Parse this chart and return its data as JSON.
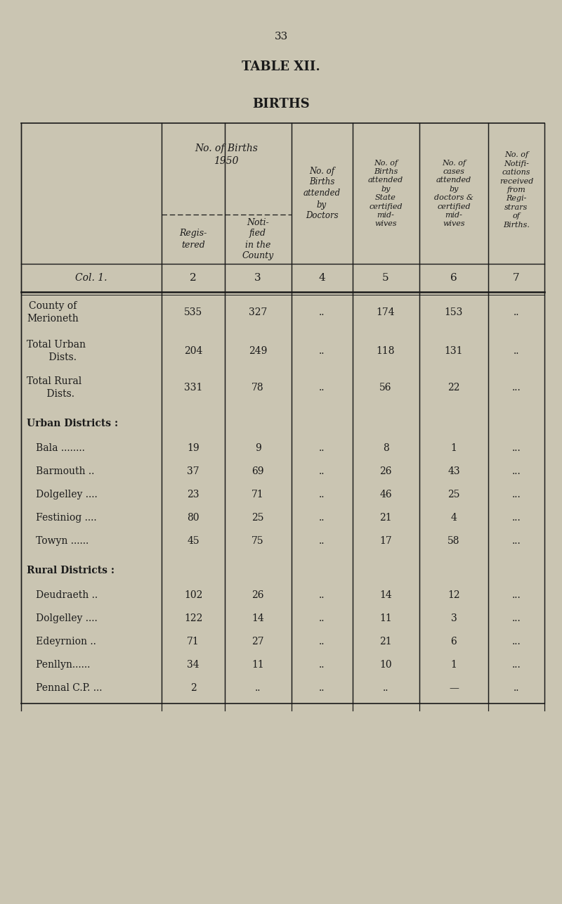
{
  "page_number": "33",
  "table_title": "TABLE XII.",
  "table_subtitle": "BIRTHS",
  "bg_color": "#cac5b2",
  "text_color": "#1a1a1a",
  "col_num_row": [
    "Col. 1.",
    "2",
    "3",
    "4",
    "5",
    "6",
    "7"
  ],
  "header_col1_label": "",
  "header_col23_title": "No. of Births\n1950",
  "header_col2_sub": "Regis-\ntered",
  "header_col3_sub": "Noti-\nfied\nin the\nCounty",
  "header_col4": "No. of\nBirths\nattended\nby\nDoctors",
  "header_col5": "No. of\nBirths\nattended\nby\nState\ncertified\nmid-\nwives",
  "header_col6": "No. of\ncases\nattended\nby\ndoctors &\ncertified\nmid-\nwives",
  "header_col7": "No. of\nNotifi-\ncations\nreceived\nfrom\nRegi-\nstrars\nof\nBirths.",
  "rows": [
    {
      "label": "County of\nMerioneth",
      "type": "summary",
      "col2": "535",
      "col3": "327",
      "col4": "..",
      "col5": "174",
      "col6": "153",
      "col7": ".."
    },
    {
      "label": "Total Urban\n    Dists.",
      "type": "summary",
      "col2": "204",
      "col3": "249",
      "col4": "..",
      "col5": "118",
      "col6": "131",
      "col7": ".."
    },
    {
      "label": "Total Rural\n    Dists.",
      "type": "summary",
      "col2": "331",
      "col3": "78",
      "col4": "..",
      "col5": "56",
      "col6": "22",
      "col7": "..."
    },
    {
      "label": "Urban Districts :",
      "type": "section_header",
      "col2": "",
      "col3": "",
      "col4": "",
      "col5": "",
      "col6": "",
      "col7": ""
    },
    {
      "label": "   Bala ........",
      "type": "data",
      "col2": "19",
      "col3": "9",
      "col4": "..",
      "col5": "8",
      "col6": "1",
      "col7": "..."
    },
    {
      "label": "   Barmouth ..",
      "type": "data",
      "col2": "37",
      "col3": "69",
      "col4": "..",
      "col5": "26",
      "col6": "43",
      "col7": "..."
    },
    {
      "label": "   Dolgelley ....",
      "type": "data",
      "col2": "23",
      "col3": "71",
      "col4": "..",
      "col5": "46",
      "col6": "25",
      "col7": "..."
    },
    {
      "label": "   Festiniog ....",
      "type": "data",
      "col2": "80",
      "col3": "25",
      "col4": "..",
      "col5": "21",
      "col6": "4",
      "col7": "..."
    },
    {
      "label": "   Towyn ......",
      "type": "data",
      "col2": "45",
      "col3": "75",
      "col4": "..",
      "col5": "17",
      "col6": "58",
      "col7": "..."
    },
    {
      "label": "Rural Districts :",
      "type": "section_header",
      "col2": "",
      "col3": "",
      "col4": "",
      "col5": "",
      "col6": "",
      "col7": ""
    },
    {
      "label": "   Deudraeth ..",
      "type": "data",
      "col2": "102",
      "col3": "26",
      "col4": "..",
      "col5": "14",
      "col6": "12",
      "col7": "..."
    },
    {
      "label": "   Dolgelley ....",
      "type": "data",
      "col2": "122",
      "col3": "14",
      "col4": "..",
      "col5": "11",
      "col6": "3",
      "col7": "..."
    },
    {
      "label": "   Edeyrnion ..",
      "type": "data",
      "col2": "71",
      "col3": "27",
      "col4": "..",
      "col5": "21",
      "col6": "6",
      "col7": "..."
    },
    {
      "label": "   Penllyn......",
      "type": "data",
      "col2": "34",
      "col3": "11",
      "col4": "..",
      "col5": "10",
      "col6": "1",
      "col7": "..."
    },
    {
      "label": "   Pennal C.P. ...",
      "type": "data",
      "col2": "2",
      "col3": "..",
      "col4": "..",
      "col5": "..",
      "col6": "—",
      "col7": ".."
    }
  ]
}
